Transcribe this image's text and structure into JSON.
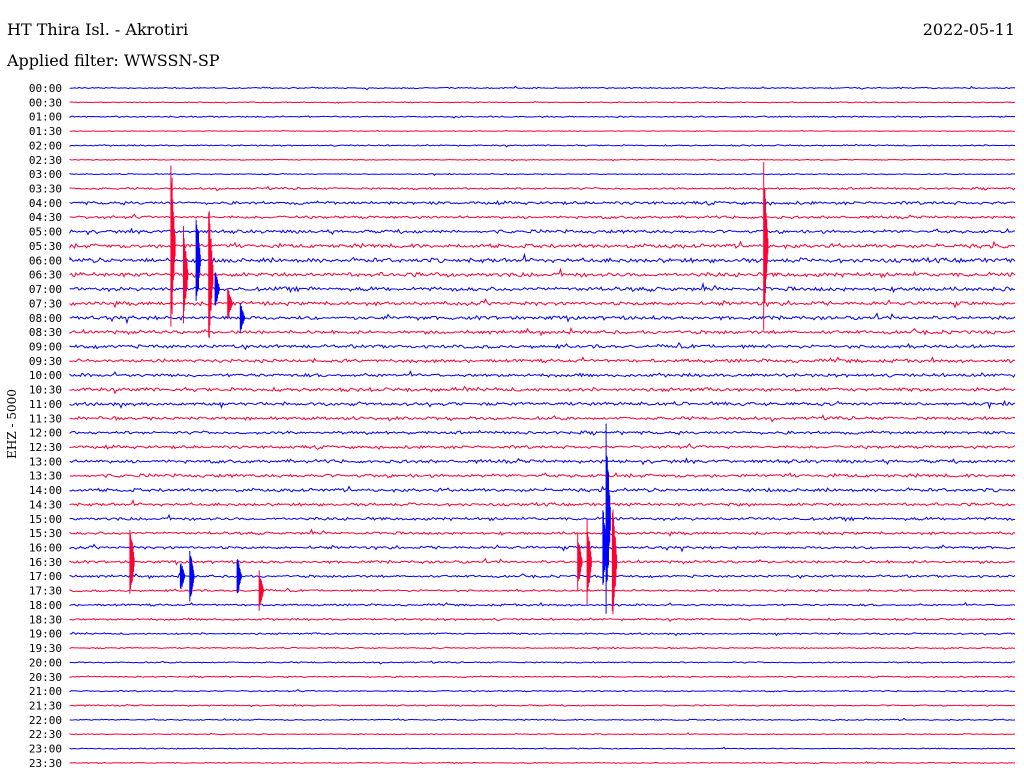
{
  "header": {
    "title": "HT Thira Isl. - Akrotiri",
    "date": "2022-05-11",
    "filter": "Applied filter: WWSSN-SP"
  },
  "chart_data": {
    "type": "line",
    "title": "HT Thira Isl. - Akrotiri",
    "ylabel": "EHZ - 5000",
    "trace_labels": [
      "00:00",
      "00:30",
      "01:00",
      "01:30",
      "02:00",
      "02:30",
      "03:00",
      "03:30",
      "04:00",
      "04:30",
      "05:00",
      "05:30",
      "06:00",
      "06:30",
      "07:00",
      "07:30",
      "08:00",
      "08:30",
      "09:00",
      "09:30",
      "10:00",
      "10:30",
      "11:00",
      "11:30",
      "12:00",
      "12:30",
      "13:00",
      "13:30",
      "14:00",
      "14:30",
      "15:00",
      "15:30",
      "16:00",
      "16:30",
      "17:00",
      "17:30",
      "18:00",
      "18:30",
      "19:00",
      "19:30",
      "20:00",
      "20:30",
      "21:00",
      "21:30",
      "22:00",
      "22:30",
      "23:00",
      "23:30"
    ],
    "trace_colors": [
      "#0000ff",
      "#ff0033"
    ],
    "trace_duration_min": 30,
    "noise_level": [
      0.4,
      0.3,
      0.4,
      0.2,
      0.4,
      0.3,
      0.3,
      0.6,
      0.9,
      0.8,
      1.0,
      1.2,
      1.3,
      1.3,
      1.2,
      1.1,
      1.1,
      1.0,
      1.0,
      1.0,
      1.0,
      1.1,
      1.0,
      0.9,
      0.9,
      0.9,
      1.0,
      1.0,
      1.0,
      0.9,
      0.9,
      0.8,
      0.8,
      0.8,
      0.7,
      0.6,
      0.6,
      0.6,
      0.5,
      0.4,
      0.4,
      0.4,
      0.4,
      0.4,
      0.4,
      0.3,
      0.3,
      0.3
    ],
    "events": [
      {
        "trace": "05:30",
        "t_min": 3.2,
        "amplitude_traces": 6.5
      },
      {
        "trace": "06:00",
        "t_min": 4.0,
        "amplitude_traces": 4.0
      },
      {
        "trace": "06:30",
        "t_min": 3.6,
        "amplitude_traces": 3.5
      },
      {
        "trace": "06:30",
        "t_min": 4.4,
        "amplitude_traces": 5.5
      },
      {
        "trace": "07:00",
        "t_min": 4.6,
        "amplitude_traces": 1.5
      },
      {
        "trace": "07:30",
        "t_min": 5.0,
        "amplitude_traces": 1.3
      },
      {
        "trace": "08:00",
        "t_min": 5.4,
        "amplitude_traces": 1.2
      },
      {
        "trace": "05:30",
        "t_min": 22.0,
        "amplitude_traces": 6.0
      },
      {
        "trace": "16:30",
        "t_min": 1.9,
        "amplitude_traces": 3.0
      },
      {
        "trace": "17:00",
        "t_min": 3.8,
        "amplitude_traces": 2.0
      },
      {
        "trace": "17:00",
        "t_min": 3.5,
        "amplitude_traces": 1.2
      },
      {
        "trace": "17:00",
        "t_min": 5.3,
        "amplitude_traces": 1.5
      },
      {
        "trace": "17:30",
        "t_min": 6.0,
        "amplitude_traces": 1.5
      },
      {
        "trace": "15:00",
        "t_min": 17.0,
        "amplitude_traces": 7.0
      },
      {
        "trace": "16:30",
        "t_min": 17.2,
        "amplitude_traces": 4.5
      },
      {
        "trace": "16:00",
        "t_min": 16.9,
        "amplitude_traces": 3.0
      },
      {
        "trace": "16:30",
        "t_min": 16.4,
        "amplitude_traces": 3.0
      },
      {
        "trace": "16:30",
        "t_min": 16.1,
        "amplitude_traces": 2.0
      }
    ]
  }
}
